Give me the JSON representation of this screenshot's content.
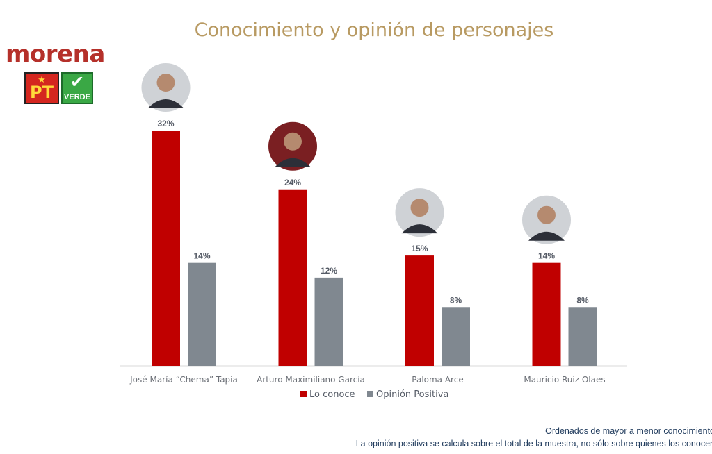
{
  "title": "Conocimiento y opinión de personajes",
  "logos": {
    "morena": "morena",
    "pt": "PT",
    "verde": "VERDE"
  },
  "colors": {
    "lo_conoce": "#c00000",
    "opinion_positiva": "#808890",
    "title": "#b89a62"
  },
  "chart_data": {
    "type": "bar",
    "title": "Conocimiento y opinión de personajes",
    "categories": [
      "José María “Chema” Tapia",
      "Arturo Maximiliano García",
      "Paloma Arce",
      "Mauricio Ruiz Olaes"
    ],
    "series": [
      {
        "name": "Lo conoce",
        "values": [
          32,
          24,
          15,
          14
        ],
        "labels": [
          "32%",
          "24%",
          "15%",
          "14%"
        ]
      },
      {
        "name": "Opinión Positiva",
        "values": [
          14,
          12,
          8,
          8
        ],
        "labels": [
          "14%",
          "12%",
          "8%",
          "8%"
        ]
      }
    ],
    "ylim": [
      0,
      32
    ],
    "grid": false,
    "legend": "bottom"
  },
  "footnotes": {
    "line1": "Ordenados de mayor a menor conocimiento",
    "line2": "La opinión positiva se calcula sobre el total de la muestra, no sólo sobre quienes los conocen"
  }
}
